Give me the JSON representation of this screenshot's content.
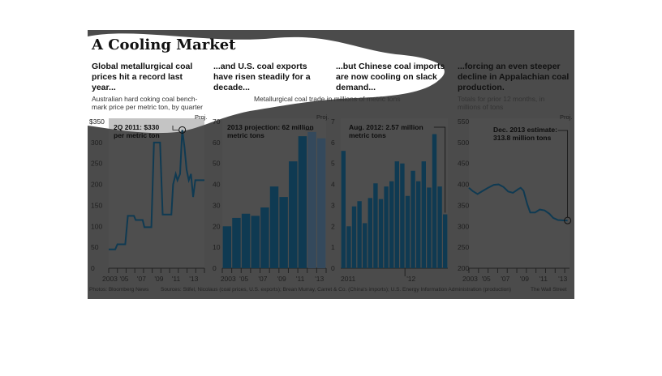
{
  "title": "A Cooling Market",
  "colors": {
    "background": "#4b4b4b",
    "bar": "#0f3a52",
    "bar_projected": "#34495c",
    "line": "#0f3a52",
    "blob": "#ffffff"
  },
  "panels": [
    {
      "head": [
        "Global metallurgical coal",
        "prices hit a record last",
        "year..."
      ],
      "desc": [
        "Australian hard coking coal bench-",
        "mark price per metric ton, by quarter"
      ]
    },
    {
      "head": [
        "...and U.S. coal exports",
        "have risen steadily for a",
        "decade..."
      ],
      "desc": [
        "Metallurgical coal trade in millions of metric tons"
      ]
    },
    {
      "head": [
        "...but Chinese coal imports",
        "are now cooling on slack",
        "demand..."
      ],
      "desc": []
    },
    {
      "head": [
        "...forcing an even steeper",
        "decline in Appalachian coal",
        "production."
      ],
      "desc": [
        "Totals for prior 12 months, in",
        "millions of tons"
      ]
    }
  ],
  "footer": {
    "photos": "Photos: Bloomberg News",
    "sources": "Sources: Stifel, Nicolaus (coal prices, U.S. exports); Brean Murray, Carret & Co.  (China's imports); U.S. Energy Information Administration (production)",
    "credit": "The Wall Street"
  },
  "chart_data": [
    {
      "type": "line",
      "title": "Australian hard coking coal benchmark price per metric ton, by quarter",
      "yticks": [
        "$350",
        "300",
        "250",
        "200",
        "150",
        "100",
        "50",
        "0"
      ],
      "ylim": [
        0,
        350
      ],
      "xticks": [
        "2003",
        "'05",
        "'07",
        "'09",
        "'11",
        "'13"
      ],
      "xlim": [
        2003,
        2014
      ],
      "proj_label": "Proj.",
      "annotation": [
        "2Q 2011: $330",
        "per metric ton"
      ],
      "points": [
        [
          2003,
          45
        ],
        [
          2003.75,
          45
        ],
        [
          2004,
          57
        ],
        [
          2004.9,
          57
        ],
        [
          2005.2,
          125
        ],
        [
          2005.9,
          125
        ],
        [
          2006.1,
          115
        ],
        [
          2006.9,
          115
        ],
        [
          2007.1,
          98
        ],
        [
          2007.9,
          98
        ],
        [
          2008.2,
          300
        ],
        [
          2008.9,
          300
        ],
        [
          2009.2,
          128
        ],
        [
          2010.2,
          128
        ],
        [
          2010.4,
          200
        ],
        [
          2010.7,
          225
        ],
        [
          2010.9,
          210
        ],
        [
          2011.2,
          225
        ],
        [
          2011.45,
          330
        ],
        [
          2011.7,
          290
        ],
        [
          2011.95,
          235
        ],
        [
          2012.2,
          210
        ],
        [
          2012.45,
          225
        ],
        [
          2012.7,
          170
        ],
        [
          2012.95,
          210
        ],
        [
          2014,
          210
        ]
      ]
    },
    {
      "type": "bar",
      "title": "U.S. metallurgical coal exports, millions of metric tons",
      "yticks": [
        "70",
        "60",
        "50",
        "40",
        "30",
        "20",
        "10",
        "0"
      ],
      "ylim": [
        0,
        70
      ],
      "xticks": [
        "2003",
        "'05",
        "'07",
        "'09",
        "'11",
        "'13"
      ],
      "proj_label": "Proj.",
      "annotation": [
        "2013 projection: 62 million",
        "metric tons"
      ],
      "categories": [
        "2003",
        "2004",
        "2005",
        "2006",
        "2007",
        "2008",
        "2009",
        "2010",
        "2011",
        "2012",
        "2013"
      ],
      "values": [
        20,
        24,
        26,
        25,
        29,
        39,
        34,
        51,
        63,
        65,
        62
      ],
      "projected": [
        false,
        false,
        false,
        false,
        false,
        false,
        false,
        false,
        false,
        true,
        true
      ]
    },
    {
      "type": "bar",
      "title": "China metallurgical coal imports, millions of metric tons, monthly",
      "yticks": [
        "7",
        "6",
        "5",
        "4",
        "3",
        "2",
        "1",
        "0"
      ],
      "ylim": [
        0,
        7
      ],
      "xticks": [
        "2011",
        "'12"
      ],
      "annotation": [
        "Aug. 2012: 2.57 million",
        "metric tons"
      ],
      "values": [
        5.6,
        2.0,
        2.95,
        3.2,
        2.15,
        3.35,
        4.05,
        3.3,
        3.9,
        4.15,
        5.1,
        5.0,
        3.45,
        4.65,
        4.15,
        5.1,
        3.85,
        6.4,
        3.9,
        2.57
      ]
    },
    {
      "type": "line",
      "title": "Appalachian coal production, prior 12 months, millions of tons",
      "yticks": [
        "550",
        "500",
        "450",
        "400",
        "350",
        "300",
        "250",
        "200"
      ],
      "ylim": [
        200,
        550
      ],
      "xticks": [
        "2003",
        "'05",
        "'07",
        "'09",
        "'11",
        "'13"
      ],
      "xlim": [
        2003,
        2013.5
      ],
      "proj_label": "Proj.",
      "annotation": [
        "Dec. 2013 estimate:",
        "313.8 million tons"
      ],
      "points": [
        [
          2003,
          392
        ],
        [
          2003.4,
          384
        ],
        [
          2003.9,
          377
        ],
        [
          2004.4,
          384
        ],
        [
          2005,
          392
        ],
        [
          2005.6,
          399
        ],
        [
          2006.1,
          400
        ],
        [
          2006.6,
          394
        ],
        [
          2007.1,
          383
        ],
        [
          2007.6,
          380
        ],
        [
          2008.1,
          388
        ],
        [
          2008.4,
          392
        ],
        [
          2008.7,
          385
        ],
        [
          2009.1,
          352
        ],
        [
          2009.4,
          333
        ],
        [
          2009.9,
          333
        ],
        [
          2010.4,
          340
        ],
        [
          2010.9,
          338
        ],
        [
          2011.4,
          330
        ],
        [
          2011.8,
          320
        ],
        [
          2012.3,
          315
        ],
        [
          2012.9,
          314
        ],
        [
          2013.3,
          313.8
        ]
      ]
    }
  ]
}
